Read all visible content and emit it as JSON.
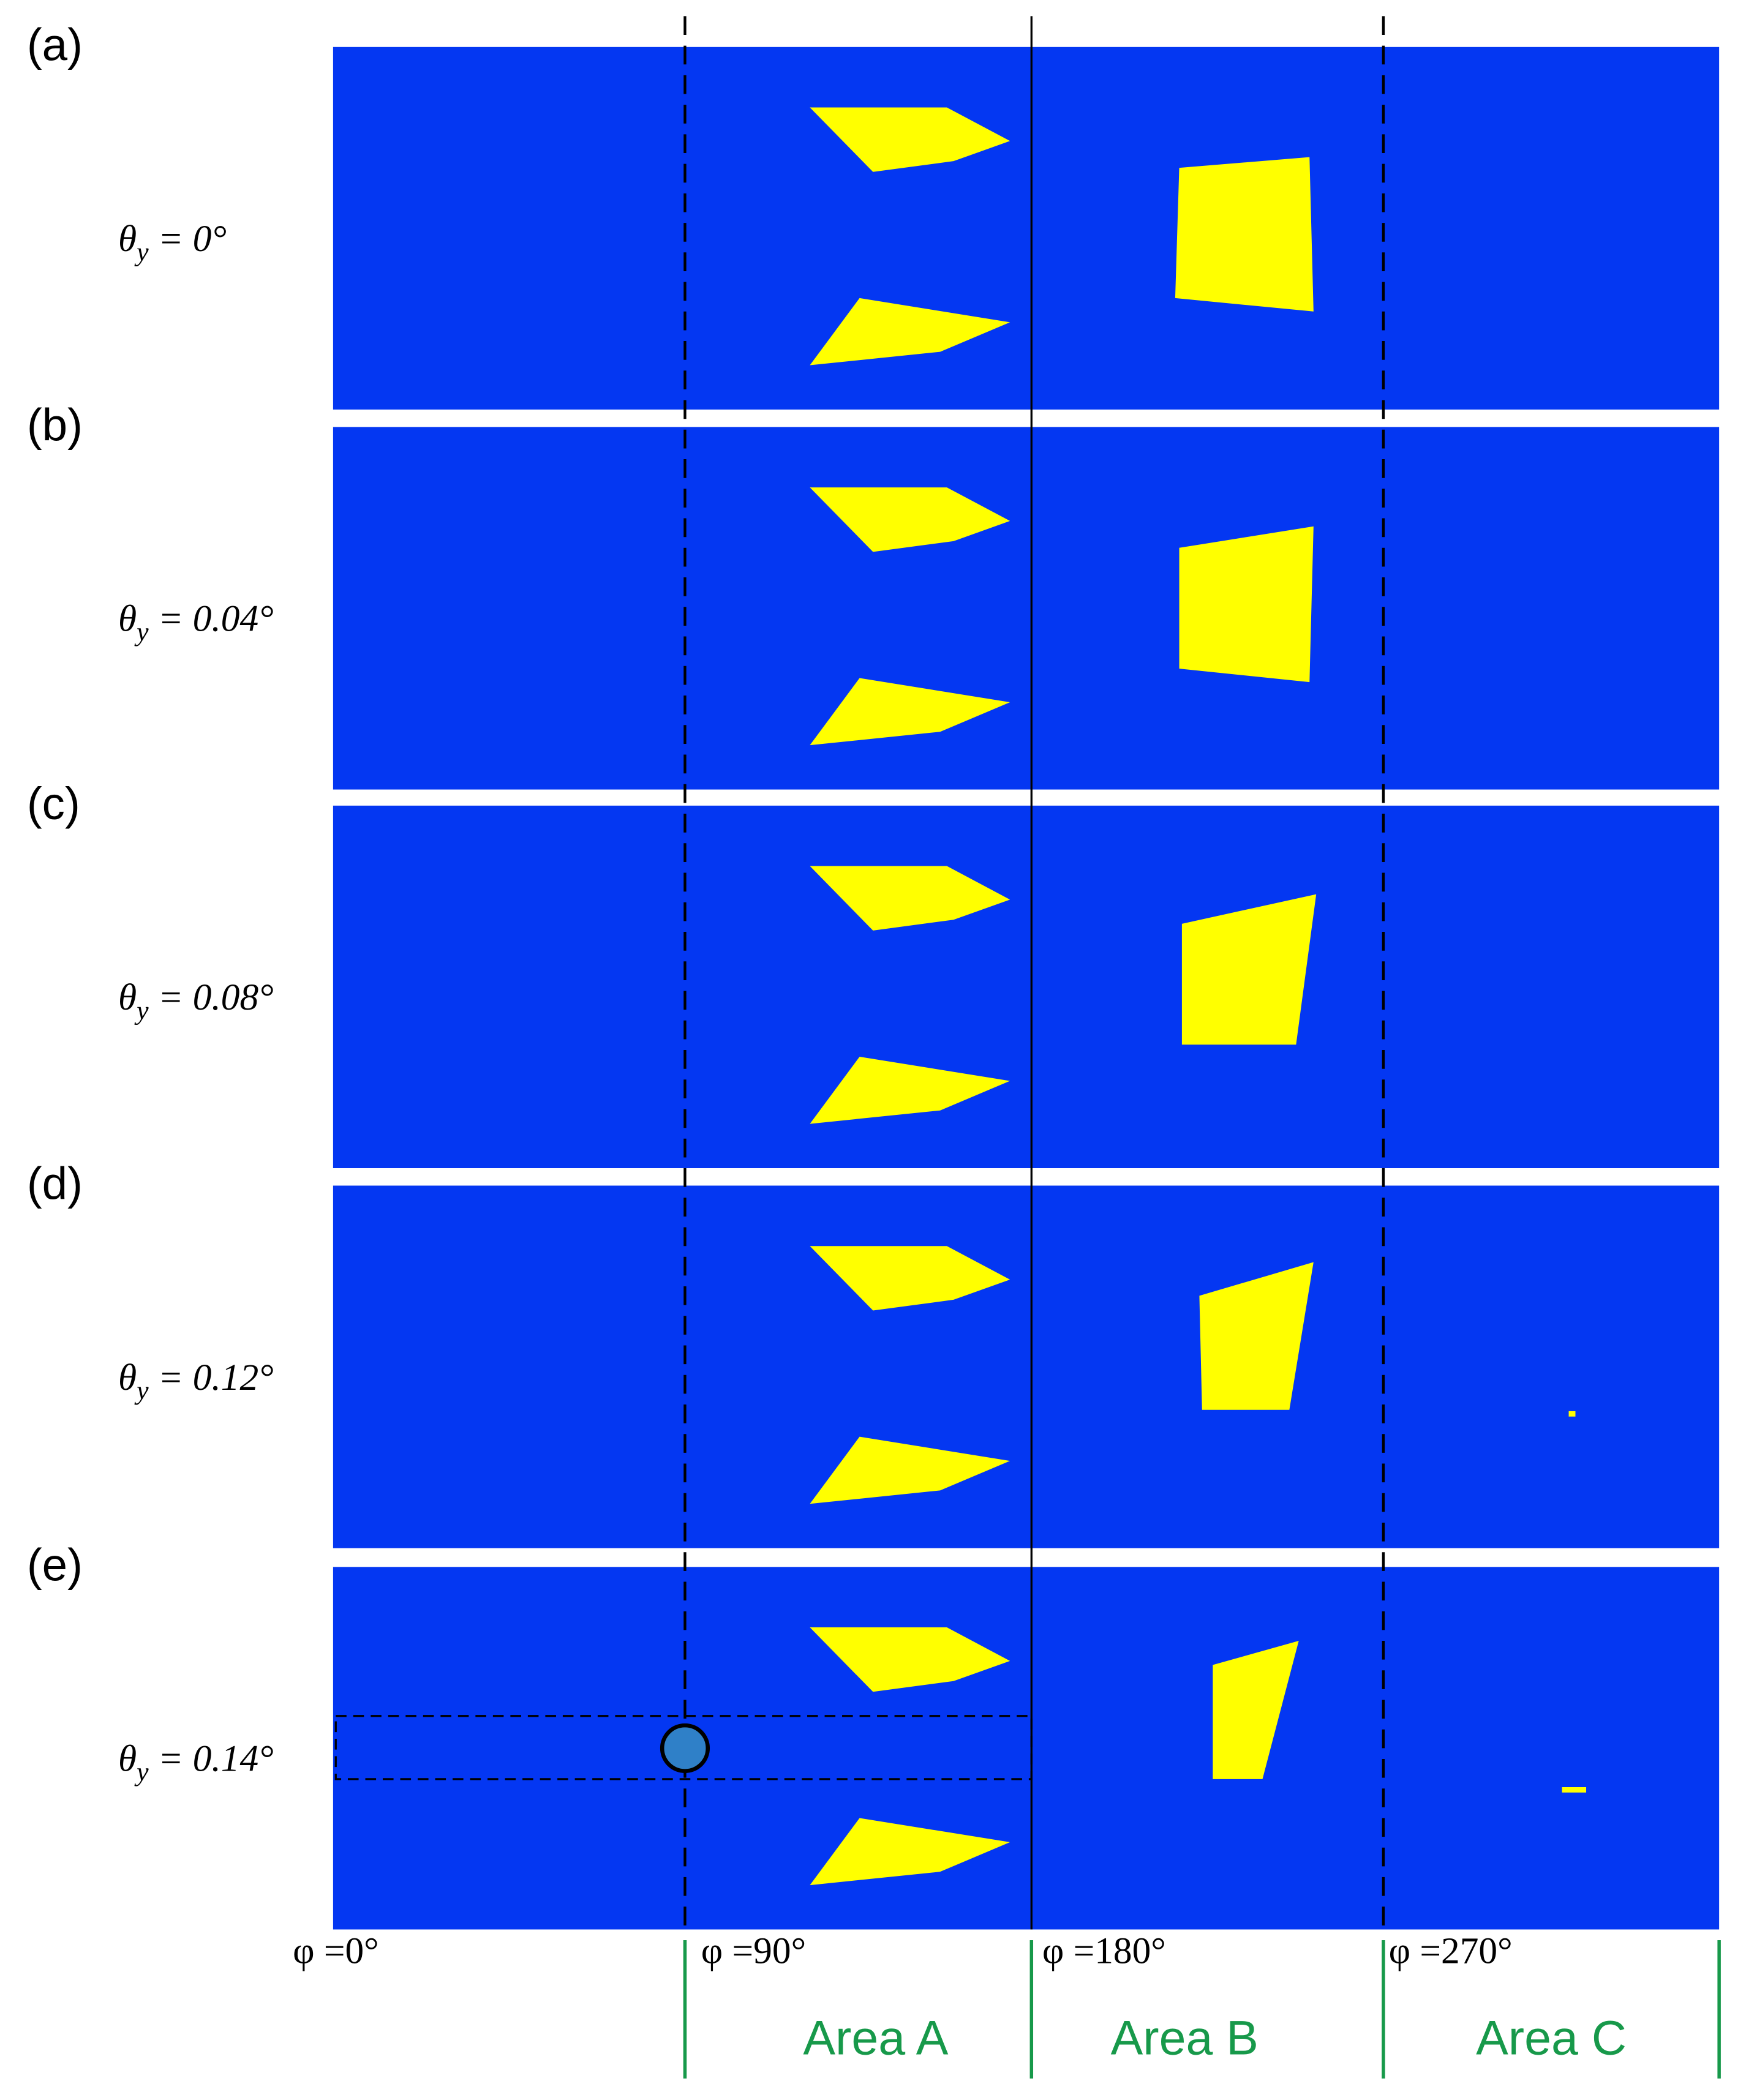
{
  "panels": [
    {
      "label": "(a)",
      "angle": {
        "symbol": "θ",
        "subscript": "y",
        "value": " = 0°"
      }
    },
    {
      "label": "(b)",
      "angle": {
        "symbol": "θ",
        "subscript": "y",
        "value": " = 0.04°"
      }
    },
    {
      "label": "(c)",
      "angle": {
        "symbol": "θ",
        "subscript": "y",
        "value": " = 0.08°"
      }
    },
    {
      "label": "(d)",
      "angle": {
        "symbol": "θ",
        "subscript": "y",
        "value": " = 0.12°"
      }
    },
    {
      "label": "(e)",
      "angle": {
        "symbol": "θ",
        "subscript": "y",
        "value": " = 0.14°"
      }
    }
  ],
  "phi_labels": [
    "φ =0°",
    "φ =90°",
    "φ =180°",
    "φ =270°"
  ],
  "areas": [
    "Area A",
    "Area B",
    "Area C"
  ]
}
